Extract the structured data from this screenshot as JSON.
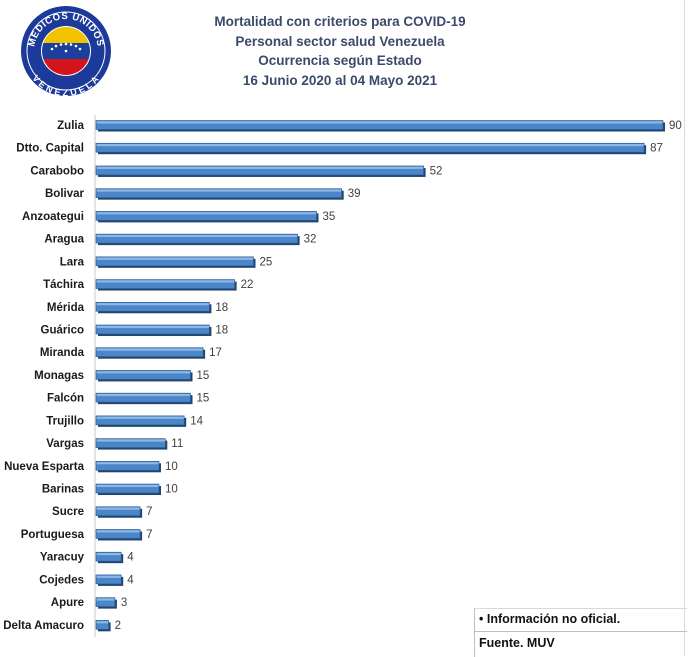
{
  "logo": {
    "top_text": "MEDICOS UNIDOS",
    "bottom_text": "VENEZUELA",
    "flag_colors": [
      "#f2c200",
      "#1c3f9e",
      "#d4141b"
    ]
  },
  "title_lines": [
    "Mortalidad con criterios para COVID-19",
    "Personal sector salud Venezuela",
    "Ocurrencia según Estado",
    "16 Junio 2020 al 04 Mayo 2021"
  ],
  "chart_data": {
    "type": "bar",
    "orientation": "horizontal",
    "categories": [
      "Zulia",
      "Dtto. Capital",
      "Carabobo",
      "Bolivar",
      "Anzoategui",
      "Aragua",
      "Lara",
      "Táchira",
      "Mérida",
      "Guárico",
      "Miranda",
      "Monagas",
      "Falcón",
      "Trujillo",
      "Vargas",
      "Nueva Esparta",
      "Barinas",
      "Sucre",
      "Portuguesa",
      "Yaracuy",
      "Cojedes",
      "Apure",
      "Delta Amacuro"
    ],
    "values": [
      90,
      87,
      52,
      39,
      35,
      32,
      25,
      22,
      18,
      18,
      17,
      15,
      15,
      14,
      11,
      10,
      10,
      7,
      7,
      4,
      4,
      3,
      2
    ],
    "xlim": [
      0,
      90
    ],
    "bar_color": "#4a86c8",
    "data_labels": true,
    "grid": false
  },
  "note": "Información no oficial.",
  "note_bullet": "•",
  "source": "Fuente. MUV"
}
